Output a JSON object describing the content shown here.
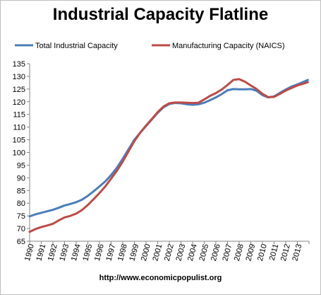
{
  "chart_data": {
    "type": "line",
    "title": "Industrial Capacity Flatline",
    "source": "http://www.economicpopulist.org",
    "xlabel": "",
    "ylabel": "",
    "x": [
      1990,
      1990.5,
      1991,
      1991.5,
      1992,
      1992.5,
      1993,
      1993.5,
      1994,
      1994.5,
      1995,
      1995.5,
      1996,
      1996.5,
      1997,
      1997.5,
      1998,
      1998.5,
      1999,
      1999.5,
      2000,
      2000.5,
      2001,
      2001.5,
      2002,
      2002.5,
      2003,
      2003.5,
      2004,
      2004.5,
      2005,
      2005.5,
      2006,
      2006.5,
      2007,
      2007.5,
      2008,
      2008.5,
      2009,
      2009.5,
      2010,
      2010.5,
      2011,
      2011.5,
      2012,
      2012.5,
      2013,
      2013.5,
      2013.9
    ],
    "xticks": [
      "1990",
      "1991",
      "1992",
      "1993",
      "1994",
      "1995",
      "1996",
      "1997",
      "1998",
      "1999",
      "2000",
      "2001",
      "2002",
      "2003",
      "2004",
      "2005",
      "2006",
      "2007",
      "2008",
      "2009",
      "2010",
      "2011",
      "2012",
      "2013"
    ],
    "ylim": [
      65,
      135
    ],
    "yticks": [
      65,
      70,
      75,
      80,
      85,
      90,
      95,
      100,
      105,
      110,
      115,
      120,
      125,
      130,
      135
    ],
    "grid": false,
    "legend_position": "top",
    "series": [
      {
        "name": "Total Industrial  Capacity",
        "color": "#4a7ebb",
        "values": [
          74.8,
          75.6,
          76.2,
          76.8,
          77.4,
          78.2,
          79.1,
          79.7,
          80.4,
          81.4,
          82.9,
          84.7,
          86.6,
          88.6,
          91.1,
          94.0,
          97.5,
          101.3,
          105.0,
          107.8,
          110.4,
          113.0,
          115.6,
          117.8,
          119.1,
          119.5,
          119.4,
          119.0,
          118.8,
          119.0,
          119.6,
          120.6,
          121.7,
          123.0,
          124.5,
          125.0,
          124.9,
          124.9,
          125.0,
          124.3,
          122.6,
          121.7,
          122.1,
          123.5,
          124.8,
          126.0,
          126.8,
          127.8,
          128.6
        ]
      },
      {
        "name": "Manufacturing Capacity (NAICS)",
        "color": "#be4b48",
        "values": [
          68.7,
          69.8,
          70.6,
          71.2,
          71.9,
          73.2,
          74.4,
          75.0,
          75.9,
          77.3,
          79.3,
          81.6,
          84.0,
          86.6,
          89.7,
          92.8,
          96.4,
          100.5,
          104.5,
          107.8,
          110.6,
          113.2,
          115.9,
          118.1,
          119.4,
          119.7,
          119.7,
          119.6,
          119.5,
          119.6,
          120.9,
          122.3,
          123.4,
          124.8,
          126.6,
          128.6,
          128.9,
          127.9,
          126.4,
          125.0,
          123.1,
          121.8,
          121.9,
          123.1,
          124.4,
          125.4,
          126.4,
          127.1,
          127.7
        ]
      }
    ]
  }
}
